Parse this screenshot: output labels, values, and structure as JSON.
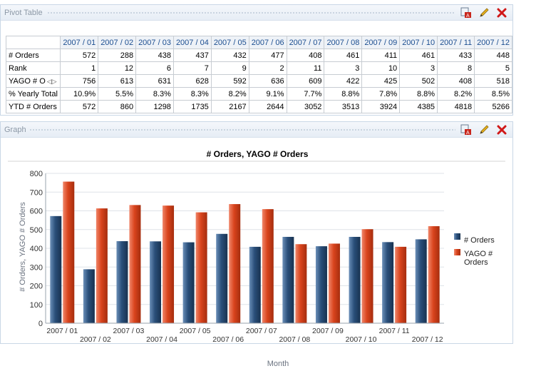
{
  "pivot_panel": {
    "title": "Pivot Table"
  },
  "graph_panel": {
    "title": "Graph"
  },
  "icons": {
    "export": "export-pdf-icon",
    "edit": "pencil-edit-icon",
    "close": "close-x-icon"
  },
  "colors": {
    "orders": "#2a4f7a",
    "yago": "#d9441d",
    "header_link": "#1d4f91"
  },
  "pivot": {
    "columns": [
      "2007 / 01",
      "2007 / 02",
      "2007 / 03",
      "2007 / 04",
      "2007 / 05",
      "2007 / 06",
      "2007 / 07",
      "2007 / 08",
      "2007 / 09",
      "2007 / 10",
      "2007 / 11",
      "2007 / 12"
    ],
    "rows": [
      {
        "label": "# Orders",
        "values": [
          "572",
          "288",
          "438",
          "437",
          "432",
          "477",
          "408",
          "461",
          "411",
          "461",
          "433",
          "448"
        ]
      },
      {
        "label": "Rank",
        "values": [
          "1",
          "12",
          "6",
          "7",
          "9",
          "2",
          "11",
          "3",
          "10",
          "3",
          "8",
          "5"
        ]
      },
      {
        "label": "YAGO # O",
        "values": [
          "756",
          "613",
          "631",
          "628",
          "592",
          "636",
          "609",
          "422",
          "425",
          "502",
          "408",
          "518"
        ]
      },
      {
        "label": "% Yearly Total",
        "values": [
          "10.9%",
          "5.5%",
          "8.3%",
          "8.3%",
          "8.2%",
          "9.1%",
          "7.7%",
          "8.8%",
          "7.8%",
          "8.8%",
          "8.2%",
          "8.5%"
        ]
      },
      {
        "label": "YTD # Orders",
        "values": [
          "572",
          "860",
          "1298",
          "1735",
          "2167",
          "2644",
          "3052",
          "3513",
          "3924",
          "4385",
          "4818",
          "5266"
        ]
      }
    ]
  },
  "chart_data": {
    "type": "bar",
    "title": "# Orders, YAGO # Orders",
    "xlabel": "Month",
    "ylabel": "# Orders, YAGO # Orders",
    "ylim": [
      0,
      800
    ],
    "yticks": [
      0,
      100,
      200,
      300,
      400,
      500,
      600,
      700,
      800
    ],
    "grid": true,
    "legend": "right",
    "categories": [
      "2007 / 01",
      "2007 / 02",
      "2007 / 03",
      "2007 / 04",
      "2007 / 05",
      "2007 / 06",
      "2007 / 07",
      "2007 / 08",
      "2007 / 09",
      "2007 / 10",
      "2007 / 11",
      "2007 / 12"
    ],
    "series": [
      {
        "name": "# Orders",
        "values": [
          572,
          288,
          438,
          437,
          432,
          477,
          408,
          461,
          411,
          461,
          433,
          448
        ]
      },
      {
        "name": "YAGO # Orders",
        "values": [
          756,
          613,
          631,
          628,
          592,
          636,
          609,
          422,
          425,
          502,
          408,
          518
        ]
      }
    ]
  }
}
